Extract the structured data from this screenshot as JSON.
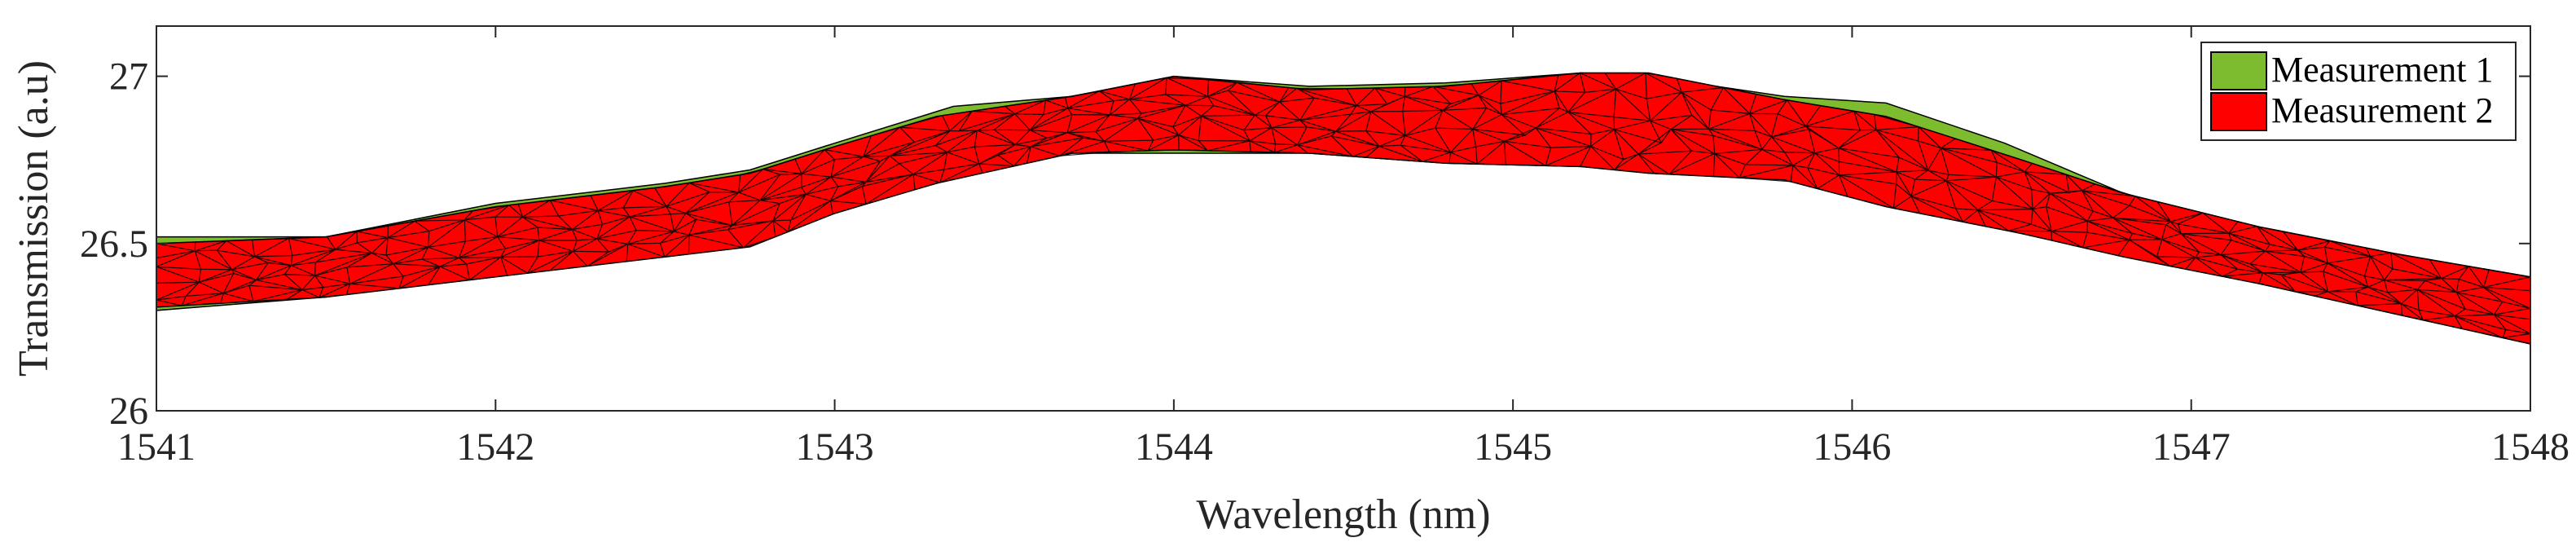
{
  "chart_data": {
    "type": "area",
    "title": "",
    "xlabel": "Wavelength (nm)",
    "ylabel": "Transmission (a.u)",
    "xlim": [
      1541,
      1548
    ],
    "ylim": [
      26,
      27.15
    ],
    "xticks": [
      1541,
      1542,
      1543,
      1544,
      1545,
      1546,
      1547,
      1548
    ],
    "yticks": [
      26,
      26.5,
      27
    ],
    "ytick_labels": [
      "26",
      "26.5",
      "27"
    ],
    "grid": false,
    "legend_position": "top-right",
    "series": [
      {
        "name": "Measurement 1",
        "color": "#7dbb2f",
        "x": [
          1541.0,
          1541.5,
          1542.0,
          1542.5,
          1542.75,
          1543.0,
          1543.35,
          1543.7,
          1544.0,
          1544.4,
          1544.8,
          1545.2,
          1545.4,
          1545.8,
          1546.1,
          1546.45,
          1546.8,
          1547.2,
          1547.6,
          1548.0
        ],
        "upper": [
          26.52,
          26.52,
          26.62,
          26.68,
          26.72,
          26.8,
          26.91,
          26.94,
          27.0,
          26.97,
          26.98,
          27.01,
          27.0,
          26.94,
          26.92,
          26.8,
          26.65,
          26.55,
          26.47,
          26.4
        ],
        "lower": [
          26.3,
          26.34,
          26.41,
          26.47,
          26.5,
          26.6,
          26.7,
          26.77,
          26.77,
          26.77,
          26.74,
          26.73,
          26.72,
          26.7,
          26.62,
          26.55,
          26.47,
          26.38,
          26.29,
          26.2
        ]
      },
      {
        "name": "Measurement 2",
        "color": "#ff0000",
        "x": [
          1541.0,
          1541.5,
          1542.0,
          1542.5,
          1542.75,
          1543.0,
          1543.3,
          1543.7,
          1544.0,
          1544.4,
          1544.8,
          1545.2,
          1545.4,
          1545.8,
          1546.1,
          1546.5,
          1546.8,
          1547.2,
          1547.6,
          1548.0
        ],
        "upper": [
          26.5,
          26.52,
          26.61,
          26.67,
          26.71,
          26.79,
          26.88,
          26.94,
          27.0,
          26.96,
          26.97,
          27.01,
          27.01,
          26.93,
          26.88,
          26.75,
          26.65,
          26.55,
          26.47,
          26.4
        ],
        "lower": [
          26.31,
          26.34,
          26.4,
          26.46,
          26.49,
          26.59,
          26.68,
          26.77,
          26.78,
          26.77,
          26.74,
          26.73,
          26.71,
          26.69,
          26.61,
          26.53,
          26.46,
          26.38,
          26.29,
          26.2
        ]
      }
    ]
  }
}
